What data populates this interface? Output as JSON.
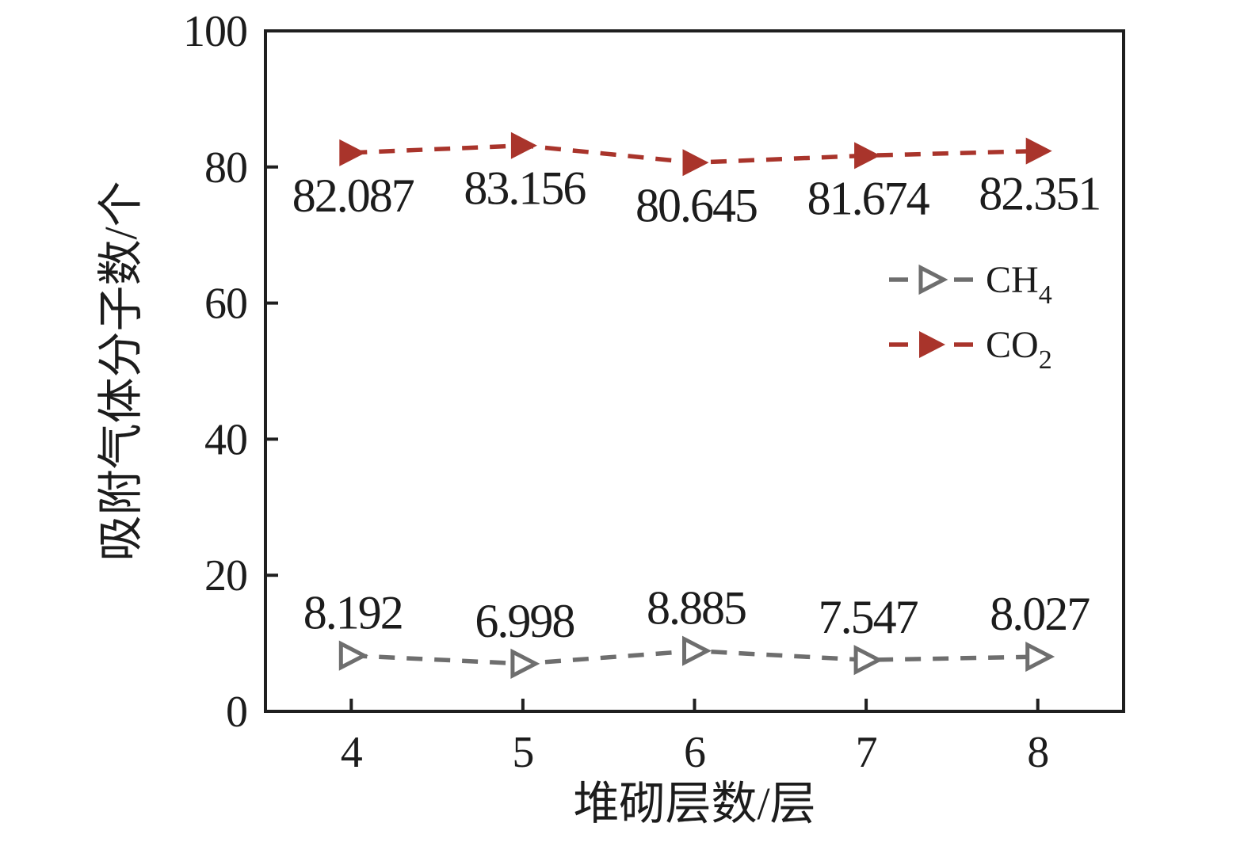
{
  "chart_data": {
    "type": "line",
    "x": [
      4,
      5,
      6,
      7,
      8
    ],
    "series": [
      {
        "name": "CH4",
        "legend_base": "CH",
        "legend_sub": "4",
        "values": [
          8.192,
          6.998,
          8.885,
          7.547,
          8.027
        ],
        "value_labels": [
          "8.192",
          "6.998",
          "8.885",
          "7.547",
          "8.027"
        ],
        "color": "#6E6E6E",
        "marker": "open-right-triangle",
        "line_style": "dashed",
        "value_label_position": "above"
      },
      {
        "name": "CO2",
        "legend_base": "CO",
        "legend_sub": "2",
        "values": [
          82.087,
          83.156,
          80.645,
          81.674,
          82.351
        ],
        "value_labels": [
          "82.087",
          "83.156",
          "80.645",
          "81.674",
          "82.351"
        ],
        "color": "#A9342B",
        "marker": "filled-right-triangle",
        "line_style": "dashed",
        "value_label_position": "below"
      }
    ],
    "xlabel": "堆砌层数/层",
    "ylabel": "吸附气体分子数/个",
    "xlim": [
      3.5,
      8.5
    ],
    "ylim": [
      0,
      100
    ],
    "xticks": [
      "4",
      "5",
      "6",
      "7",
      "8"
    ],
    "xtick_values": [
      4,
      5,
      6,
      7,
      8
    ],
    "yticks": [
      "0",
      "20",
      "40",
      "60",
      "80",
      "100"
    ],
    "ytick_values": [
      0,
      20,
      40,
      60,
      80,
      100
    ],
    "grid": false,
    "legend_position": "middle-right",
    "plot_border": "full-box",
    "tick_direction": "in"
  },
  "colors": {
    "background": "#ffffff",
    "axis": "#1f1f1f",
    "text": "#1c1c1c",
    "ch4": "#6E6E6E",
    "co2": "#A9342B"
  }
}
